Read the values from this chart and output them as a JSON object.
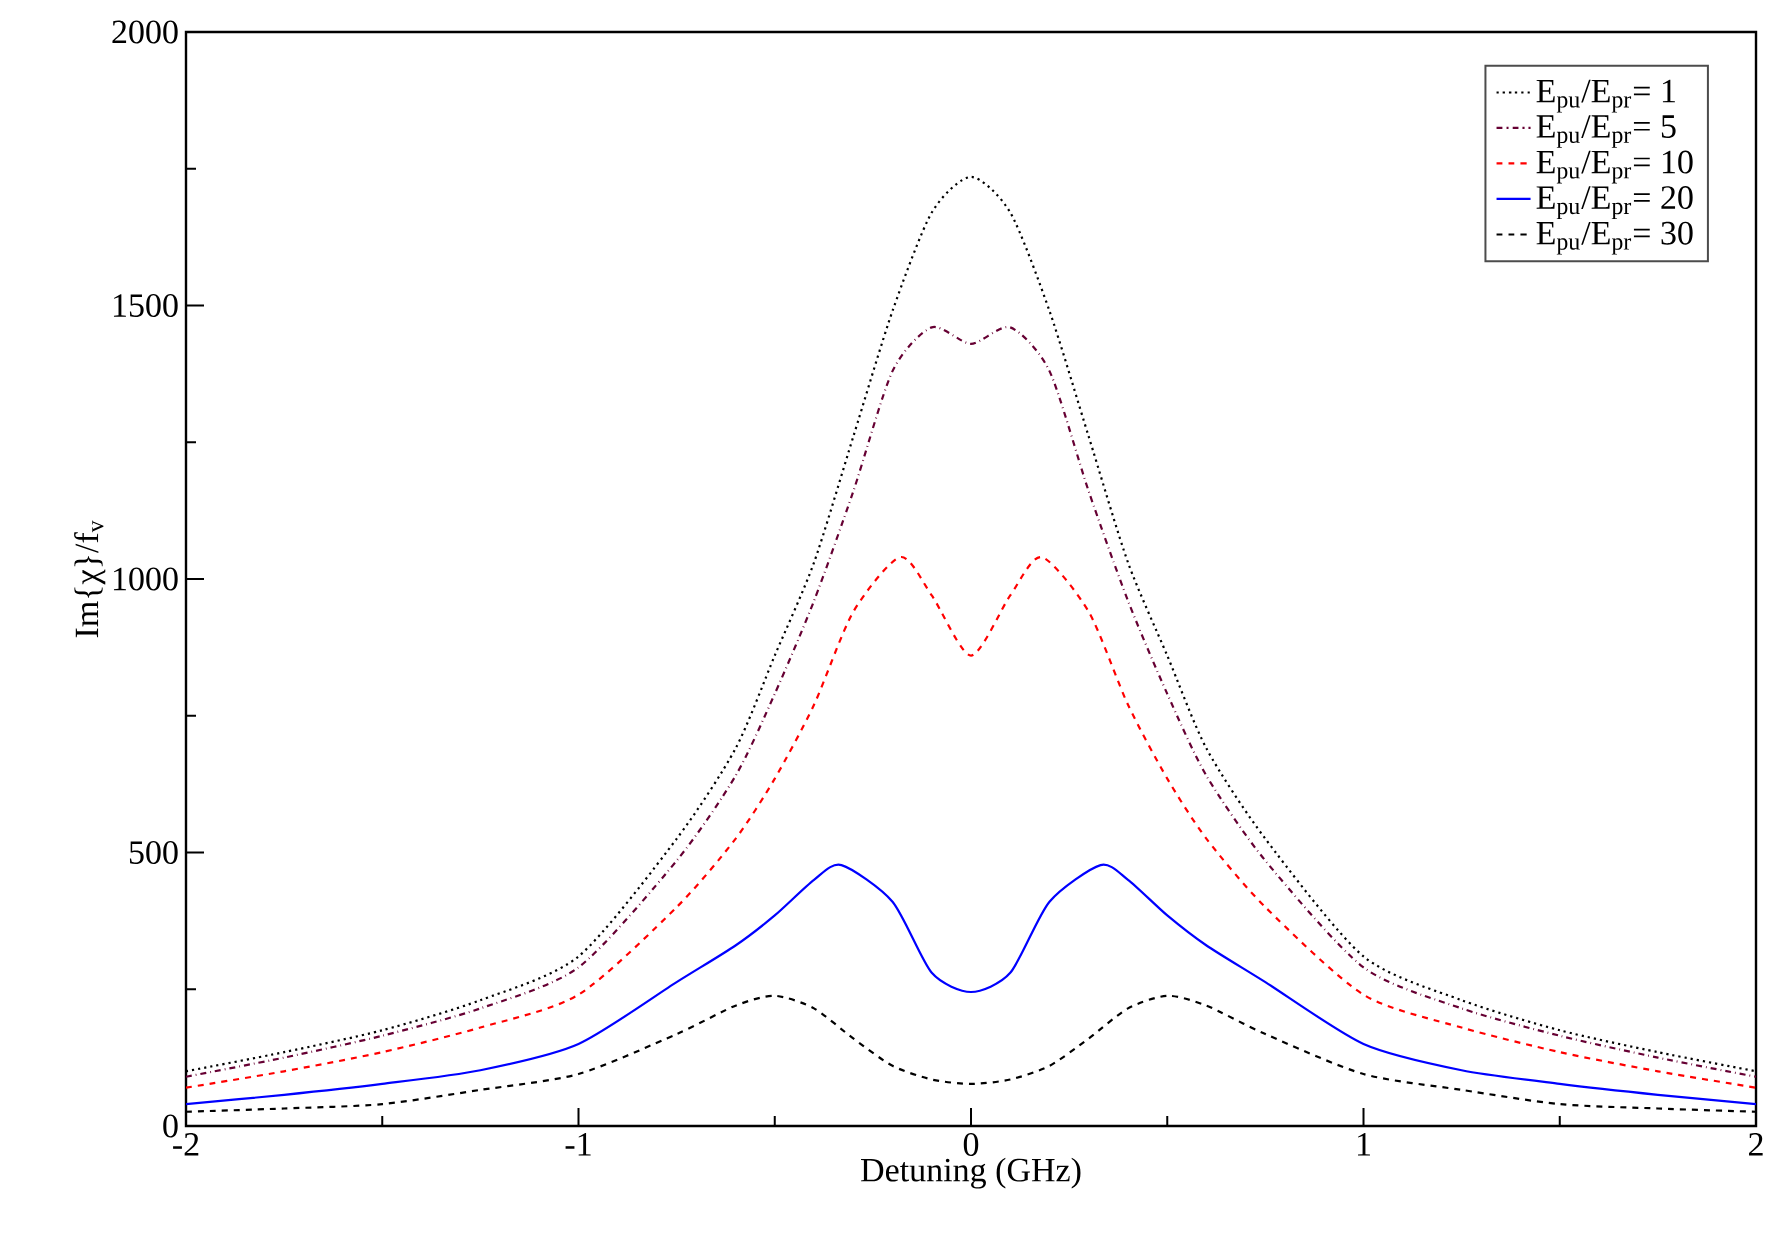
{
  "chart_data": {
    "type": "line",
    "xlabel": "Detuning (GHz)",
    "ylabel": "Im{χ}/f$_{v}$",
    "xlim": [
      -2,
      2
    ],
    "ylim": [
      0,
      2000
    ],
    "xticks": [
      -2,
      -1,
      0,
      1,
      2
    ],
    "yticks": [
      0,
      500,
      1000,
      1500,
      2000
    ],
    "grid": false,
    "legend": "top right",
    "marker": "none",
    "series": [
      {
        "name": "E$_{pu}$/E$_{pr}$= 1",
        "color": "#000000",
        "line_style": "dotted",
        "x": [
          -2,
          -1.75,
          -1.5,
          -1.25,
          -1,
          -0.75,
          -0.6,
          -0.5,
          -0.4,
          -0.3,
          -0.2,
          -0.1,
          0,
          0.1,
          0.2,
          0.3,
          0.4,
          0.5,
          0.6,
          0.75,
          1,
          1.25,
          1.5,
          1.75,
          2
        ],
        "values": [
          100,
          135,
          175,
          230,
          310,
          525,
          690,
          860,
          1030,
          1260,
          1490,
          1670,
          1735,
          1670,
          1490,
          1260,
          1030,
          860,
          690,
          525,
          310,
          230,
          175,
          135,
          100
        ]
      },
      {
        "name": "E$_{pu}$/E$_{pr}$= 5",
        "color": "#660033",
        "line_style": "dashdot",
        "x": [
          -2,
          -1.75,
          -1.5,
          -1.25,
          -1,
          -0.75,
          -0.6,
          -0.5,
          -0.4,
          -0.3,
          -0.2,
          -0.1,
          0,
          0.1,
          0.2,
          0.3,
          0.4,
          0.5,
          0.6,
          0.75,
          1,
          1.25,
          1.5,
          1.75,
          2
        ],
        "values": [
          90,
          125,
          165,
          215,
          290,
          485,
          640,
          790,
          960,
          1160,
          1380,
          1460,
          1430,
          1460,
          1380,
          1160,
          960,
          790,
          640,
          485,
          290,
          215,
          165,
          125,
          90
        ]
      },
      {
        "name": "E$_{pu}$/E$_{pr}$= 10",
        "color": "#ff0000",
        "line_style": "dashed",
        "x": [
          -2,
          -1.75,
          -1.5,
          -1.25,
          -1,
          -0.75,
          -0.6,
          -0.5,
          -0.4,
          -0.3,
          -0.18,
          -0.1,
          0,
          0.1,
          0.18,
          0.3,
          0.4,
          0.5,
          0.6,
          0.75,
          1,
          1.25,
          1.5,
          1.75,
          2
        ],
        "values": [
          70,
          100,
          135,
          180,
          240,
          400,
          525,
          635,
          770,
          940,
          1040,
          970,
          860,
          970,
          1040,
          940,
          770,
          635,
          525,
          400,
          240,
          180,
          135,
          100,
          70
        ]
      },
      {
        "name": "E$_{pu}$/E$_{pr}$= 20",
        "color": "#0000ff",
        "line_style": "solid",
        "x": [
          -2,
          -1.75,
          -1.5,
          -1.25,
          -1,
          -0.75,
          -0.6,
          -0.5,
          -0.4,
          -0.33,
          -0.2,
          -0.1,
          0,
          0.1,
          0.2,
          0.33,
          0.4,
          0.5,
          0.6,
          0.75,
          1,
          1.25,
          1.5,
          1.75,
          2
        ],
        "values": [
          40,
          57,
          77,
          102,
          150,
          263,
          330,
          385,
          450,
          477,
          410,
          280,
          245,
          280,
          410,
          477,
          450,
          385,
          330,
          263,
          150,
          102,
          77,
          57,
          40
        ]
      },
      {
        "name": "E$_{pu}$/E$_{pr}$= 30",
        "color": "#000000",
        "line_style": "dashed",
        "x": [
          -2,
          -1.75,
          -1.5,
          -1.25,
          -1,
          -0.75,
          -0.6,
          -0.5,
          -0.4,
          -0.3,
          -0.2,
          -0.1,
          0,
          0.1,
          0.2,
          0.3,
          0.4,
          0.5,
          0.6,
          0.75,
          1,
          1.25,
          1.5,
          1.75,
          2
        ],
        "values": [
          26,
          32,
          40,
          66,
          95,
          168,
          220,
          238,
          215,
          160,
          110,
          85,
          77,
          85,
          110,
          160,
          215,
          238,
          220,
          168,
          95,
          66,
          40,
          32,
          26
        ]
      }
    ]
  }
}
